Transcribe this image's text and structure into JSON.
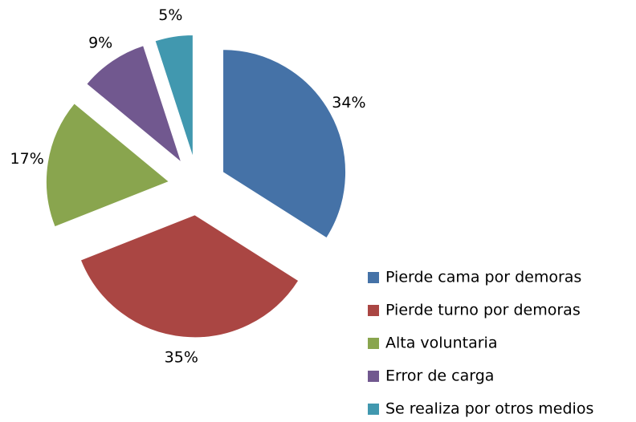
{
  "chart_data": {
    "type": "pie",
    "categories": [
      "Pierde cama por demoras",
      "Pierde turno por demoras",
      "Alta voluntaria",
      "Error de carga",
      "Se realiza por otros medios"
    ],
    "values": [
      34,
      35,
      17,
      9,
      5
    ],
    "value_labels": [
      "34%",
      "35%",
      "17%",
      "9%",
      "5%"
    ],
    "colors": [
      "#4572a7",
      "#aa4643",
      "#89a54e",
      "#71588f",
      "#4198af"
    ],
    "exploded": true,
    "legend": "bottom-right"
  }
}
